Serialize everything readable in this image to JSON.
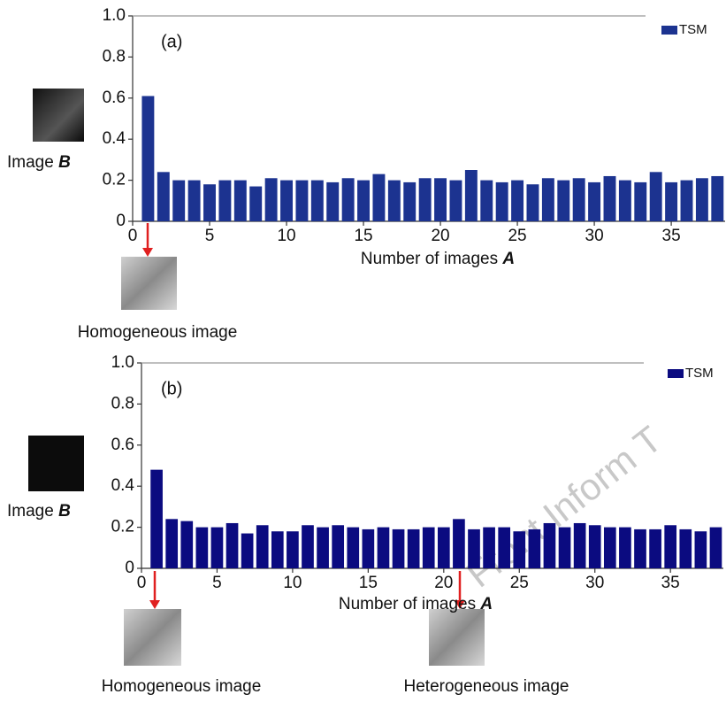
{
  "chart_data": [
    {
      "type": "bar",
      "panel": "(a)",
      "legend": "upper right",
      "image_label": "Image",
      "image_var": "B",
      "xlabel": "Number of images",
      "xlabel_var": "A",
      "annotations": [
        "Homogeneous image"
      ],
      "x": [
        1,
        2,
        3,
        4,
        5,
        6,
        7,
        8,
        9,
        10,
        11,
        12,
        13,
        14,
        15,
        16,
        17,
        18,
        19,
        20,
        21,
        22,
        23,
        24,
        25,
        26,
        27,
        28,
        29,
        30,
        31,
        32,
        33,
        34,
        35,
        36,
        37,
        38
      ],
      "series": [
        {
          "name": "TSM",
          "color": "#1c3390",
          "values": [
            0.61,
            0.24,
            0.2,
            0.2,
            0.18,
            0.2,
            0.2,
            0.17,
            0.21,
            0.2,
            0.2,
            0.2,
            0.19,
            0.21,
            0.2,
            0.23,
            0.2,
            0.19,
            0.21,
            0.21,
            0.2,
            0.25,
            0.2,
            0.19,
            0.2,
            0.18,
            0.21,
            0.2,
            0.21,
            0.19,
            0.22,
            0.2,
            0.19,
            0.24,
            0.19,
            0.2,
            0.21,
            0.22
          ]
        }
      ],
      "xlim": [
        0,
        38.5
      ],
      "ylim": [
        0,
        1
      ],
      "xticks": [
        0,
        5,
        10,
        15,
        20,
        25,
        30,
        35
      ],
      "yticks": [
        0,
        0.2,
        0.4,
        0.6,
        0.8,
        {
          "value": 1,
          "label": "1.0"
        }
      ]
    },
    {
      "type": "bar",
      "panel": "(b)",
      "legend": "upper right",
      "image_label": "Image",
      "image_var": "B",
      "xlabel": "Number of images",
      "xlabel_var": "A",
      "annotations": [
        "Homogeneous image",
        "Heterogeneous image"
      ],
      "x": [
        1,
        2,
        3,
        4,
        5,
        6,
        7,
        8,
        9,
        10,
        11,
        12,
        13,
        14,
        15,
        16,
        17,
        18,
        19,
        20,
        21,
        22,
        23,
        24,
        25,
        26,
        27,
        28,
        29,
        30,
        31,
        32,
        33,
        34,
        35,
        36,
        37,
        38
      ],
      "series": [
        {
          "name": "TSM",
          "color": "#0b0b80",
          "values": [
            0.48,
            0.24,
            0.23,
            0.2,
            0.2,
            0.22,
            0.17,
            0.21,
            0.18,
            0.18,
            0.21,
            0.2,
            0.21,
            0.2,
            0.19,
            0.2,
            0.19,
            0.19,
            0.2,
            0.2,
            0.24,
            0.19,
            0.2,
            0.2,
            0.18,
            0.19,
            0.22,
            0.2,
            0.22,
            0.21,
            0.2,
            0.2,
            0.19,
            0.19,
            0.21,
            0.19,
            0.18,
            0.2
          ]
        }
      ],
      "xlim": [
        0,
        38.5
      ],
      "ylim": [
        0,
        1
      ],
      "xticks": [
        0,
        5,
        10,
        15,
        20,
        25,
        30,
        35
      ],
      "yticks": [
        0,
        0.2,
        0.4,
        0.6,
        0.8,
        {
          "value": 1,
          "label": "1.0"
        }
      ]
    }
  ],
  "watermark": "Front Inform T"
}
